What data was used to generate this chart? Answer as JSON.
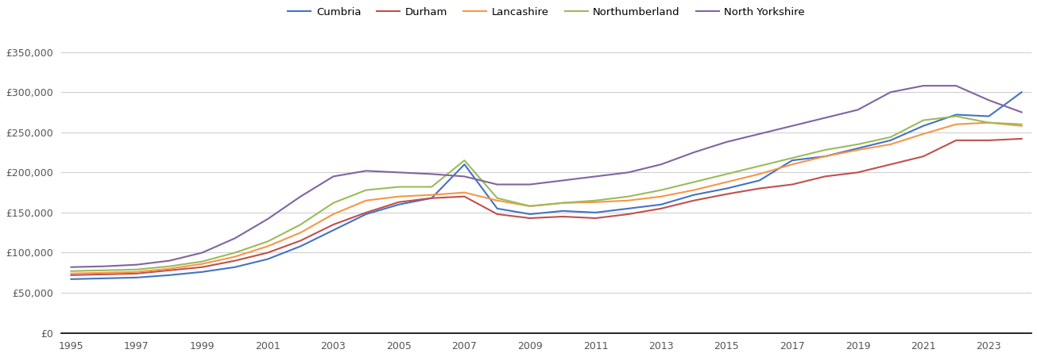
{
  "series": {
    "Cumbria": {
      "color": "#4472C4",
      "values": [
        67000,
        68000,
        69000,
        72000,
        76000,
        82000,
        92000,
        108000,
        128000,
        148000,
        160000,
        168000,
        210000,
        155000,
        148000,
        152000,
        150000,
        155000,
        160000,
        172000,
        180000,
        190000,
        215000,
        220000,
        230000,
        240000,
        258000,
        272000,
        270000,
        300000
      ]
    },
    "Durham": {
      "color": "#C0504D",
      "values": [
        72000,
        73000,
        74000,
        78000,
        82000,
        90000,
        100000,
        115000,
        135000,
        150000,
        163000,
        168000,
        170000,
        148000,
        143000,
        145000,
        143000,
        148000,
        155000,
        165000,
        173000,
        180000,
        185000,
        195000,
        200000,
        210000,
        220000,
        240000,
        240000,
        242000
      ]
    },
    "Lancashire": {
      "color": "#F79646",
      "values": [
        74000,
        75000,
        76000,
        80000,
        86000,
        95000,
        108000,
        125000,
        148000,
        165000,
        170000,
        172000,
        175000,
        165000,
        158000,
        162000,
        163000,
        165000,
        170000,
        178000,
        188000,
        198000,
        210000,
        220000,
        228000,
        235000,
        248000,
        260000,
        262000,
        258000
      ]
    },
    "Northumberland": {
      "color": "#9BBB59",
      "values": [
        77000,
        78000,
        79000,
        83000,
        89000,
        100000,
        114000,
        135000,
        162000,
        178000,
        182000,
        182000,
        215000,
        168000,
        158000,
        162000,
        165000,
        170000,
        178000,
        188000,
        198000,
        208000,
        218000,
        228000,
        235000,
        244000,
        265000,
        270000,
        262000,
        260000
      ]
    },
    "North Yorkshire": {
      "color": "#8064A2",
      "values": [
        82000,
        83000,
        85000,
        90000,
        100000,
        118000,
        142000,
        170000,
        195000,
        202000,
        200000,
        198000,
        195000,
        185000,
        185000,
        190000,
        195000,
        200000,
        210000,
        225000,
        238000,
        248000,
        258000,
        268000,
        278000,
        300000,
        308000,
        308000,
        290000,
        275000
      ]
    }
  },
  "years": [
    1995,
    1996,
    1997,
    1998,
    1999,
    2000,
    2001,
    2002,
    2003,
    2004,
    2005,
    2006,
    2007,
    2008,
    2009,
    2010,
    2011,
    2012,
    2013,
    2014,
    2015,
    2016,
    2017,
    2018,
    2019,
    2020,
    2021,
    2022,
    2023,
    2024
  ],
  "xlim": [
    1995,
    2024
  ],
  "ylim": [
    0,
    370000
  ],
  "yticks": [
    0,
    50000,
    100000,
    150000,
    200000,
    250000,
    300000,
    350000
  ],
  "xticks": [
    1995,
    1997,
    1999,
    2001,
    2003,
    2005,
    2007,
    2009,
    2011,
    2013,
    2015,
    2017,
    2019,
    2021,
    2023
  ],
  "background_color": "#ffffff",
  "grid_color": "#d0d0d0",
  "legend_order": [
    "Cumbria",
    "Durham",
    "Lancashire",
    "Northumberland",
    "North Yorkshire"
  ]
}
